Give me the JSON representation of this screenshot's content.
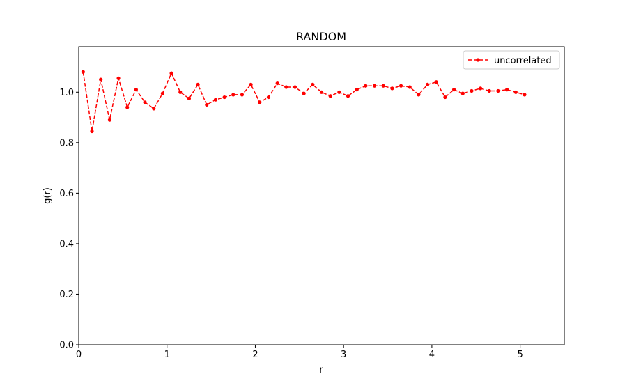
{
  "chart_data": {
    "type": "line",
    "title": "RANDOM",
    "xlabel": "r",
    "ylabel": "g(r)",
    "xlim": [
      0,
      5.5
    ],
    "ylim": [
      0,
      1.18
    ],
    "xticks": [
      0,
      1,
      2,
      3,
      4,
      5
    ],
    "xtick_labels": [
      "0",
      "1",
      "2",
      "3",
      "4",
      "5"
    ],
    "yticks": [
      0.0,
      0.2,
      0.4,
      0.6,
      0.8,
      1.0
    ],
    "ytick_labels": [
      "0.0",
      "0.2",
      "0.4",
      "0.6",
      "0.8",
      "1.0"
    ],
    "grid": false,
    "legend_position": "top-right",
    "series": [
      {
        "name": "uncorrelated",
        "color": "#ff0000",
        "line_style": "dashed",
        "marker": "circle",
        "x": [
          0.05,
          0.15,
          0.25,
          0.35,
          0.45,
          0.55,
          0.65,
          0.75,
          0.85,
          0.95,
          1.05,
          1.15,
          1.25,
          1.35,
          1.45,
          1.55,
          1.65,
          1.75,
          1.85,
          1.95,
          2.05,
          2.15,
          2.25,
          2.35,
          2.45,
          2.55,
          2.65,
          2.75,
          2.85,
          2.95,
          3.05,
          3.15,
          3.25,
          3.35,
          3.45,
          3.55,
          3.65,
          3.75,
          3.85,
          3.95,
          4.05,
          4.15,
          4.25,
          4.35,
          4.45,
          4.55,
          4.65,
          4.75,
          4.85,
          4.95,
          5.05
        ],
        "y": [
          1.08,
          0.845,
          1.05,
          0.89,
          1.055,
          0.94,
          1.01,
          0.96,
          0.935,
          0.995,
          1.075,
          1.0,
          0.975,
          1.03,
          0.95,
          0.97,
          0.98,
          0.99,
          0.99,
          1.03,
          0.96,
          0.98,
          1.035,
          1.02,
          1.02,
          0.995,
          1.03,
          1.0,
          0.985,
          1.0,
          0.985,
          1.01,
          1.025,
          1.025,
          1.025,
          1.015,
          1.025,
          1.02,
          0.99,
          1.03,
          1.04,
          0.98,
          1.01,
          0.995,
          1.005,
          1.015,
          1.005,
          1.005,
          1.01,
          1.0,
          0.99
        ]
      }
    ]
  }
}
